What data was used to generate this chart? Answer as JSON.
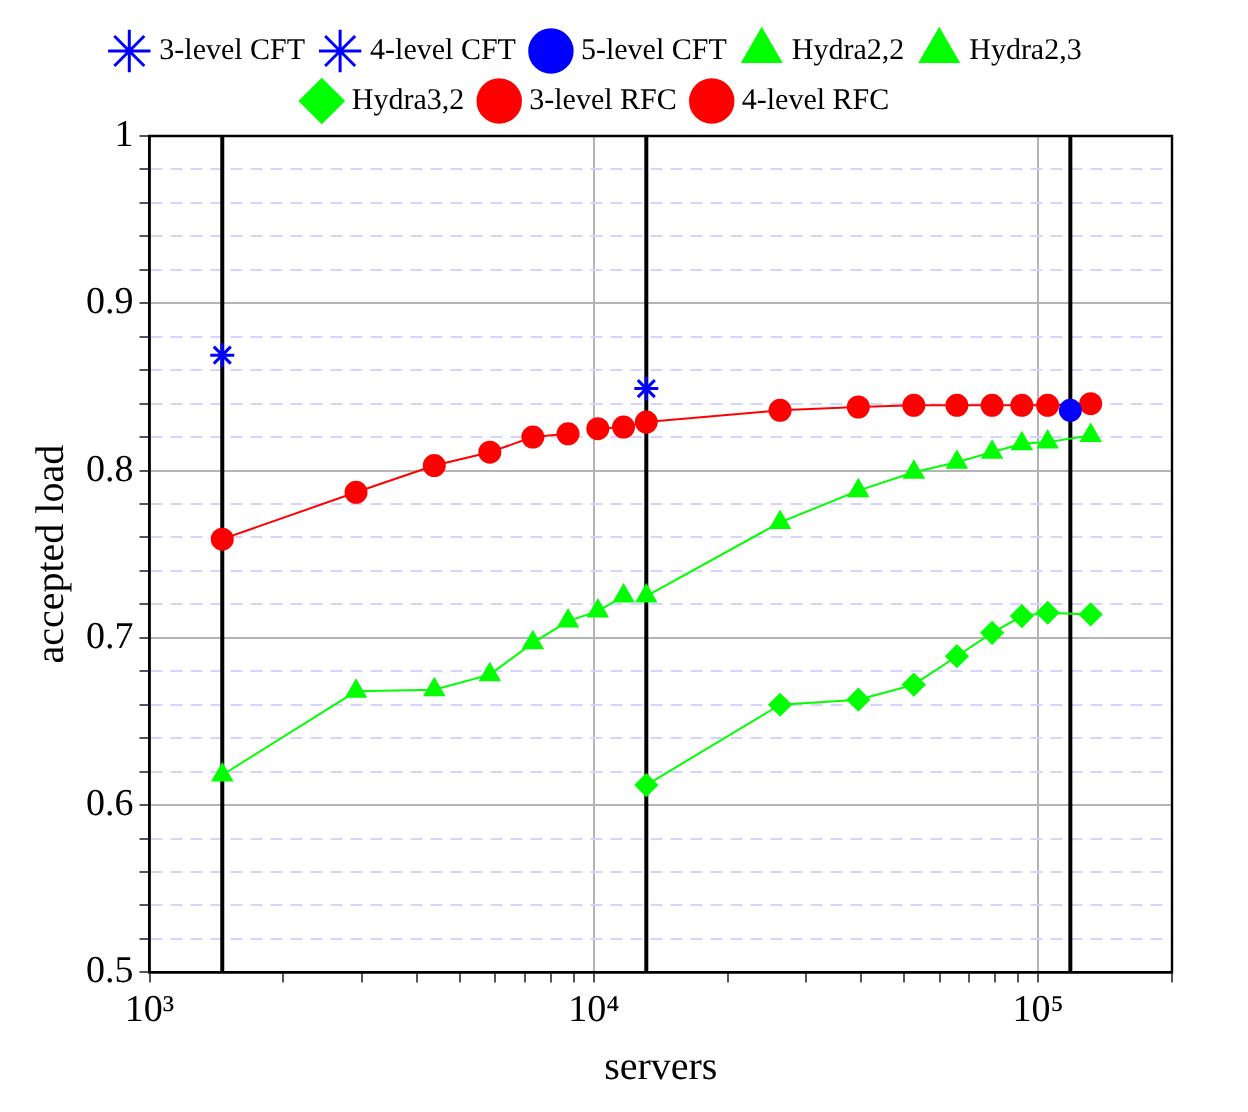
{
  "chart_data": {
    "type": "line",
    "xlabel": "servers",
    "ylabel": "accepted load",
    "log": "x",
    "xlim": [
      1000,
      200000
    ],
    "xticks": [
      {
        "value": 1000,
        "label": "10³"
      },
      {
        "value": 2000,
        "label": null
      },
      {
        "value": 3000,
        "label": null
      },
      {
        "value": 4000,
        "label": null
      },
      {
        "value": 5000,
        "label": null
      },
      {
        "value": 6000,
        "label": null
      },
      {
        "value": 7000,
        "label": null
      },
      {
        "value": 8000,
        "label": null
      },
      {
        "value": 9000,
        "label": null
      },
      {
        "value": 10000,
        "label": "10⁴"
      },
      {
        "value": 20000,
        "label": null
      },
      {
        "value": 30000,
        "label": null
      },
      {
        "value": 40000,
        "label": null
      },
      {
        "value": 50000,
        "label": null
      },
      {
        "value": 60000,
        "label": null
      },
      {
        "value": 70000,
        "label": null
      },
      {
        "value": 80000,
        "label": null
      },
      {
        "value": 90000,
        "label": null
      },
      {
        "value": 100000,
        "label": "10⁵"
      },
      {
        "value": 200000,
        "label": null
      }
    ],
    "ylim": [
      0.5,
      1
    ],
    "yticks": [
      0.5,
      {
        "value": 0.52,
        "label": null
      },
      {
        "value": 0.54,
        "label": null
      },
      {
        "value": 0.56,
        "label": null
      },
      {
        "value": 0.58,
        "label": null
      },
      0.6,
      {
        "value": 0.62,
        "label": null
      },
      {
        "value": 0.64,
        "label": null
      },
      {
        "value": 0.66,
        "label": null
      },
      {
        "value": 0.68,
        "label": null
      },
      0.7,
      {
        "value": 0.72,
        "label": null
      },
      {
        "value": 0.74,
        "label": null
      },
      {
        "value": 0.76,
        "label": null
      },
      {
        "value": 0.78,
        "label": null
      },
      0.8,
      {
        "value": 0.82,
        "label": null
      },
      {
        "value": 0.84,
        "label": null
      },
      {
        "value": 0.86,
        "label": null
      },
      {
        "value": 0.88,
        "label": null
      },
      0.9,
      {
        "value": 0.92,
        "label": null
      },
      {
        "value": 0.94,
        "label": null
      },
      {
        "value": 0.96,
        "label": null
      },
      {
        "value": 0.98,
        "label": null
      },
      1
    ],
    "grid": true,
    "legend": "top",
    "series": [
      {
        "name": "3-level CFT",
        "type": "scatter",
        "marker": "cross",
        "color": "#0000ff",
        "x": [
          1458
        ],
        "values": [
          0.869
        ]
      },
      {
        "name": "4-level CFT",
        "type": "scatter",
        "marker": "cross",
        "color": "#0000ff",
        "x": [
          13122
        ],
        "values": [
          0.849
        ]
      },
      {
        "name": "5-level CFT",
        "type": "scatter",
        "marker": "circle",
        "color": "#0000ff",
        "x": [
          118098
        ],
        "values": [
          0.836
        ]
      },
      {
        "name": "Hydra2,2",
        "marker": "triangle",
        "color": "#00ff00",
        "x": [
          1458,
          2916,
          4374,
          5832,
          7290,
          8748,
          10206,
          11664
        ],
        "values": [
          0.618,
          0.668,
          0.669,
          0.678,
          0.697,
          0.71,
          0.716,
          0.725
        ]
      },
      {
        "name": "Hydra2,3",
        "marker": "triangle",
        "color": "#00ff00",
        "x": [
          13122,
          26244,
          39366,
          52488,
          65610,
          78732,
          91854,
          104976,
          131220
        ],
        "values": [
          0.725,
          0.769,
          0.788,
          0.799,
          0.805,
          0.811,
          0.816,
          0.817,
          0.821
        ]
      },
      {
        "name": "Hydra3,2",
        "marker": "diamond",
        "color": "#00ff00",
        "x": [
          13122,
          26244,
          39366,
          52488,
          65610,
          78732,
          91854,
          104976,
          131220
        ],
        "values": [
          0.612,
          0.66,
          0.663,
          0.672,
          0.689,
          0.703,
          0.713,
          0.715,
          0.714
        ]
      },
      {
        "name": "3-level RFC",
        "marker": "circle",
        "color": "#ff0000",
        "x": [
          1458,
          2916,
          4374,
          5832,
          7290,
          8748
        ],
        "values": [
          0.759,
          0.787,
          0.803,
          0.811,
          0.82,
          0.822
        ]
      },
      {
        "name": "4-level RFC",
        "marker": "circle",
        "color": "#ff0000",
        "x": [
          10206,
          11664,
          13122,
          26244,
          39366,
          52488,
          65610,
          78732,
          91854,
          104976,
          131220
        ],
        "values": [
          0.825,
          0.826,
          0.829,
          0.836,
          0.838,
          0.839,
          0.839,
          0.839,
          0.839,
          0.839,
          0.84
        ]
      }
    ],
    "ref_lines": [
      {
        "axis": "x",
        "value": 1458,
        "color": "#000000"
      },
      {
        "axis": "x",
        "value": 13122,
        "color": "#000000"
      },
      {
        "axis": "x",
        "value": 118098,
        "color": "#000000"
      }
    ]
  }
}
